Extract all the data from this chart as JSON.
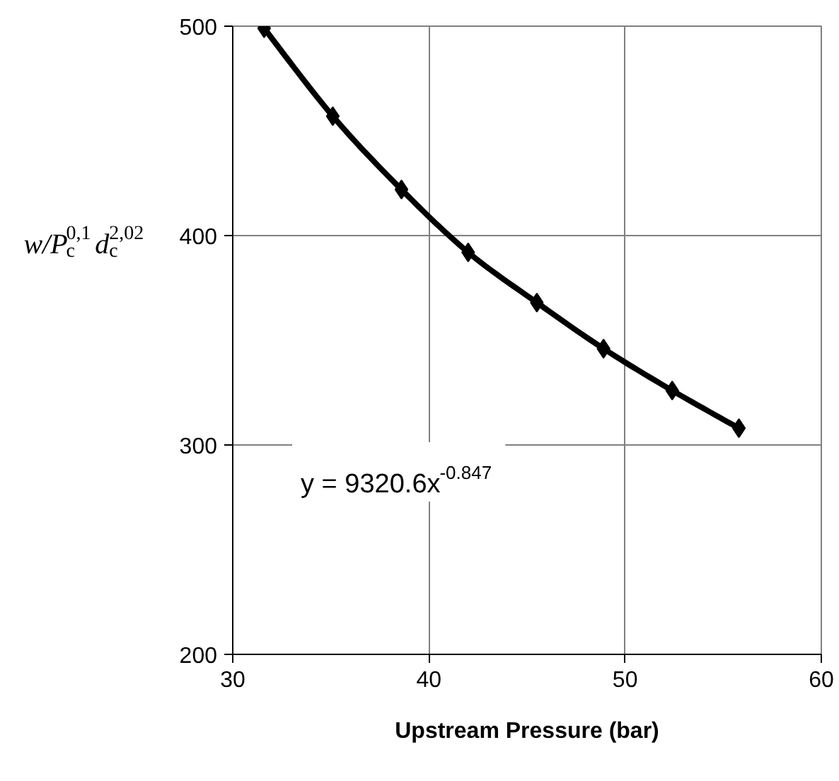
{
  "chart_data": {
    "type": "line",
    "xlabel": "Upstream Pressure (bar)",
    "ylabel": "w/P$_{c}$$^{0,1}$d$_{c}$$^{2,02}$",
    "x": [
      31.6,
      35.1,
      38.6,
      42.0,
      45.5,
      48.9,
      52.4,
      55.8
    ],
    "series": [
      {
        "color": "#000000",
        "values": [
          499,
          457,
          422,
          392,
          368,
          346,
          326,
          308
        ]
      }
    ],
    "xlim": [
      30,
      60
    ],
    "xticks": [
      30,
      40,
      50,
      60
    ],
    "ylim": [
      200,
      500
    ],
    "yticks": [
      200,
      300,
      400,
      500
    ],
    "grid": true,
    "marker": "diamond",
    "line_style": "solid",
    "annotations": [
      "y = 9320.6x$^{-0.847}$"
    ]
  }
}
